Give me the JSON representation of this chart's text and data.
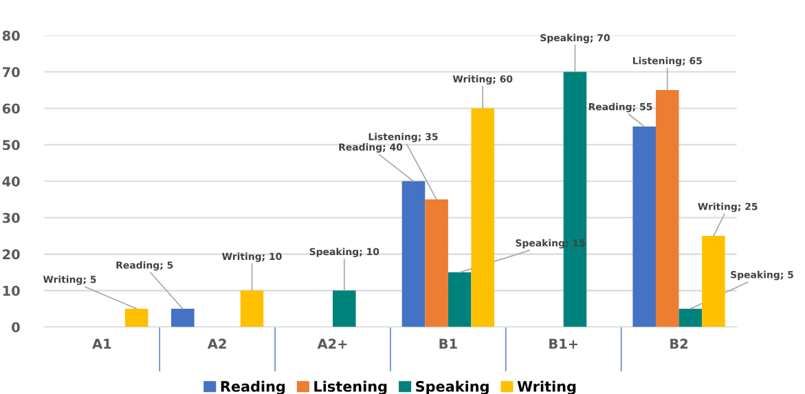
{
  "chart_data": {
    "type": "bar",
    "categories": [
      "A1",
      "A2",
      "A2+",
      "B1",
      "B1+",
      "B2"
    ],
    "series": [
      {
        "name": "Reading",
        "color": "#4472c4",
        "values": [
          null,
          5,
          null,
          40,
          null,
          55
        ],
        "value_labels": [
          null,
          "Reading; 5",
          null,
          "Reading; 40",
          null,
          "Reading; 55"
        ]
      },
      {
        "name": "Listening",
        "color": "#ed7d31",
        "values": [
          null,
          null,
          null,
          35,
          null,
          65
        ],
        "value_labels": [
          null,
          null,
          null,
          "Listening; 35",
          null,
          "Listening; 65"
        ]
      },
      {
        "name": "Speaking",
        "color": "#00827c",
        "values": [
          null,
          null,
          10,
          15,
          70,
          5
        ],
        "value_labels": [
          null,
          null,
          "Speaking; 10",
          "Speaking; 15",
          "Speaking; 70",
          "Speaking; 5"
        ]
      },
      {
        "name": "Writing",
        "color": "#ffc000",
        "values": [
          5,
          10,
          null,
          60,
          null,
          25
        ],
        "value_labels": [
          "Writing; 5",
          "Writing; 10",
          null,
          "Writing; 60",
          null,
          "Writing; 25"
        ]
      }
    ],
    "ylim": [
      0,
      80
    ],
    "yticks": [
      0,
      10,
      20,
      30,
      40,
      50,
      60,
      70,
      80
    ],
    "grid": "y",
    "legend": "bottom"
  }
}
